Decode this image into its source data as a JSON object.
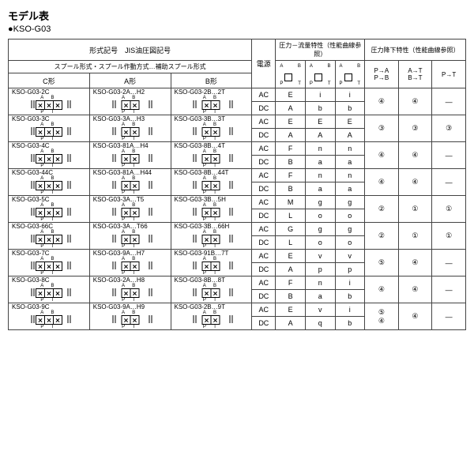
{
  "title": "モデル表",
  "subtitle": "●KSO-G03",
  "header": {
    "type_symbol": "形式記号　JIS油圧図記号",
    "spool": "スプール形式・スプール作動方式…補助スプール形式",
    "cType": "C形",
    "aType": "A形",
    "bType": "B形",
    "power": "電源",
    "pressFlow": "圧力－流量特性（性能曲線参照）",
    "pressDrop": "圧力降下特性（性能曲線参照）",
    "pa": "P→A\nP→B",
    "at": "A→T\nB→T",
    "pt": "P→T"
  },
  "power": {
    "ac": "AC",
    "dc": "DC"
  },
  "rows": [
    {
      "c": "KSO-G03-2C",
      "a": "KSO-G03-2A…H2",
      "b": "KSO-G03-2B…2T",
      "pf": [
        [
          "E",
          "i",
          "i"
        ],
        [
          "A",
          "b",
          "b"
        ]
      ],
      "pa": "④",
      "at": "④",
      "pt": "—"
    },
    {
      "c": "KSO-G03-3C",
      "a": "KSO-G03-3A…H3",
      "b": "KSO-G03-3B…3T",
      "pf": [
        [
          "E",
          "E",
          "E"
        ],
        [
          "A",
          "A",
          "A"
        ]
      ],
      "pa": "③",
      "at": "③",
      "pt": "③"
    },
    {
      "c": "KSO-G03-4C",
      "a": "KSO-G03-81A…H4",
      "b": "KSO-G03-8B…4T",
      "pf": [
        [
          "F",
          "n",
          "n"
        ],
        [
          "B",
          "a",
          "a"
        ]
      ],
      "pa": "④",
      "at": "④",
      "pt": "—"
    },
    {
      "c": "KSO-G03-44C",
      "a": "KSO-G03-81A…H44",
      "b": "KSO-G03-8B…44T",
      "pf": [
        [
          "F",
          "n",
          "n"
        ],
        [
          "B",
          "a",
          "a"
        ]
      ],
      "pa": "④",
      "at": "④",
      "pt": "—"
    },
    {
      "c": "KSO-G03-5C",
      "a": "KSO-G03-3A…T5",
      "b": "KSO-G03-3B…5H",
      "pf": [
        [
          "M",
          "g",
          "g"
        ],
        [
          "L",
          "o",
          "o"
        ]
      ],
      "pa": "②",
      "at": "①",
      "pt": "①"
    },
    {
      "c": "KSO-G03-66C",
      "a": "KSO-G03-3A…T66",
      "b": "KSO-G03-3B…66H",
      "pf": [
        [
          "G",
          "g",
          "g"
        ],
        [
          "L",
          "o",
          "o"
        ]
      ],
      "pa": "②",
      "at": "①",
      "pt": "①"
    },
    {
      "c": "KSO-G03-7C",
      "a": "KSO-G03-9A…H7",
      "b": "KSO-G03-91B…7T",
      "pf": [
        [
          "E",
          "v",
          "v"
        ],
        [
          "A",
          "p",
          "p"
        ]
      ],
      "pa": "⑤",
      "at": "④",
      "pt": "—"
    },
    {
      "c": "KSO-G03-8C",
      "a": "KSO-G03-2A…H8",
      "b": "KSO-G03-8B…8T",
      "pf": [
        [
          "F",
          "n",
          "i"
        ],
        [
          "B",
          "a",
          "b"
        ]
      ],
      "pa": "④",
      "at": "④",
      "pt": "—"
    },
    {
      "c": "KSO-G03-9C",
      "a": "KSO-G03-9A…H9",
      "b": "KSO-G03-2B…9T",
      "pf": [
        [
          "E",
          "v",
          "i"
        ],
        [
          "A",
          "q",
          "b"
        ]
      ],
      "pa": "⑤\n④",
      "at": "④",
      "pt": "—"
    }
  ],
  "colWidths": {
    "type": 82,
    "power": 24,
    "pf": 30,
    "pd": 30
  },
  "colors": {
    "border": "#444444",
    "text": "#000000",
    "bg": "#ffffff"
  }
}
